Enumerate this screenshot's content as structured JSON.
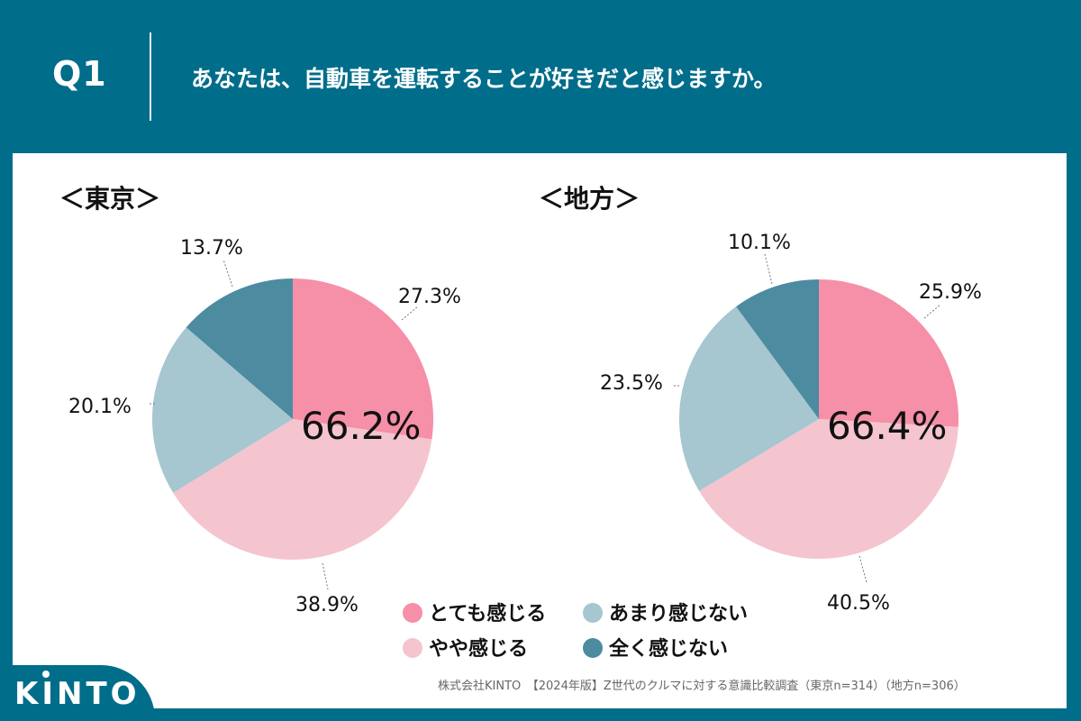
{
  "header": {
    "question_number": "Q1",
    "question_text": "あなたは、自動車を運転することが好きだと感じますか。"
  },
  "colors": {
    "very": "#f68fa8",
    "somewhat": "#f4c5cf",
    "not_much": "#a6c6d0",
    "not_at_all": "#4d8ba0",
    "background": "#006d8a"
  },
  "legend": [
    {
      "label": "とても感じる",
      "color": "#f68fa8"
    },
    {
      "label": "あまり感じない",
      "color": "#a6c6d0"
    },
    {
      "label": "やや感じる",
      "color": "#f4c5cf"
    },
    {
      "label": "全く感じない",
      "color": "#4d8ba0"
    }
  ],
  "chart_data": [
    {
      "type": "pie",
      "title": "＜東京＞",
      "center_label": "66.2%",
      "slices": [
        {
          "name": "とても感じる",
          "value": 27.3,
          "label": "27.3%",
          "color": "#f68fa8"
        },
        {
          "name": "やや感じる",
          "value": 38.9,
          "label": "38.9%",
          "color": "#f4c5cf"
        },
        {
          "name": "あまり感じない",
          "value": 20.1,
          "label": "20.1%",
          "color": "#a6c6d0"
        },
        {
          "name": "全く感じない",
          "value": 13.7,
          "label": "13.7%",
          "color": "#4d8ba0"
        }
      ]
    },
    {
      "type": "pie",
      "title": "＜地方＞",
      "center_label": "66.4%",
      "slices": [
        {
          "name": "とても感じる",
          "value": 25.9,
          "label": "25.9%",
          "color": "#f68fa8"
        },
        {
          "name": "やや感じる",
          "value": 40.5,
          "label": "40.5%",
          "color": "#f4c5cf"
        },
        {
          "name": "あまり感じない",
          "value": 23.5,
          "label": "23.5%",
          "color": "#a6c6d0"
        },
        {
          "name": "全く感じない",
          "value": 10.1,
          "label": "10.1%",
          "color": "#4d8ba0"
        }
      ]
    }
  ],
  "source": "株式会社KINTO　【2024年版】Z世代のクルマに対する意識比較調査（東京n=314）（地方n=306）",
  "logo": {
    "text": "KINTO"
  }
}
